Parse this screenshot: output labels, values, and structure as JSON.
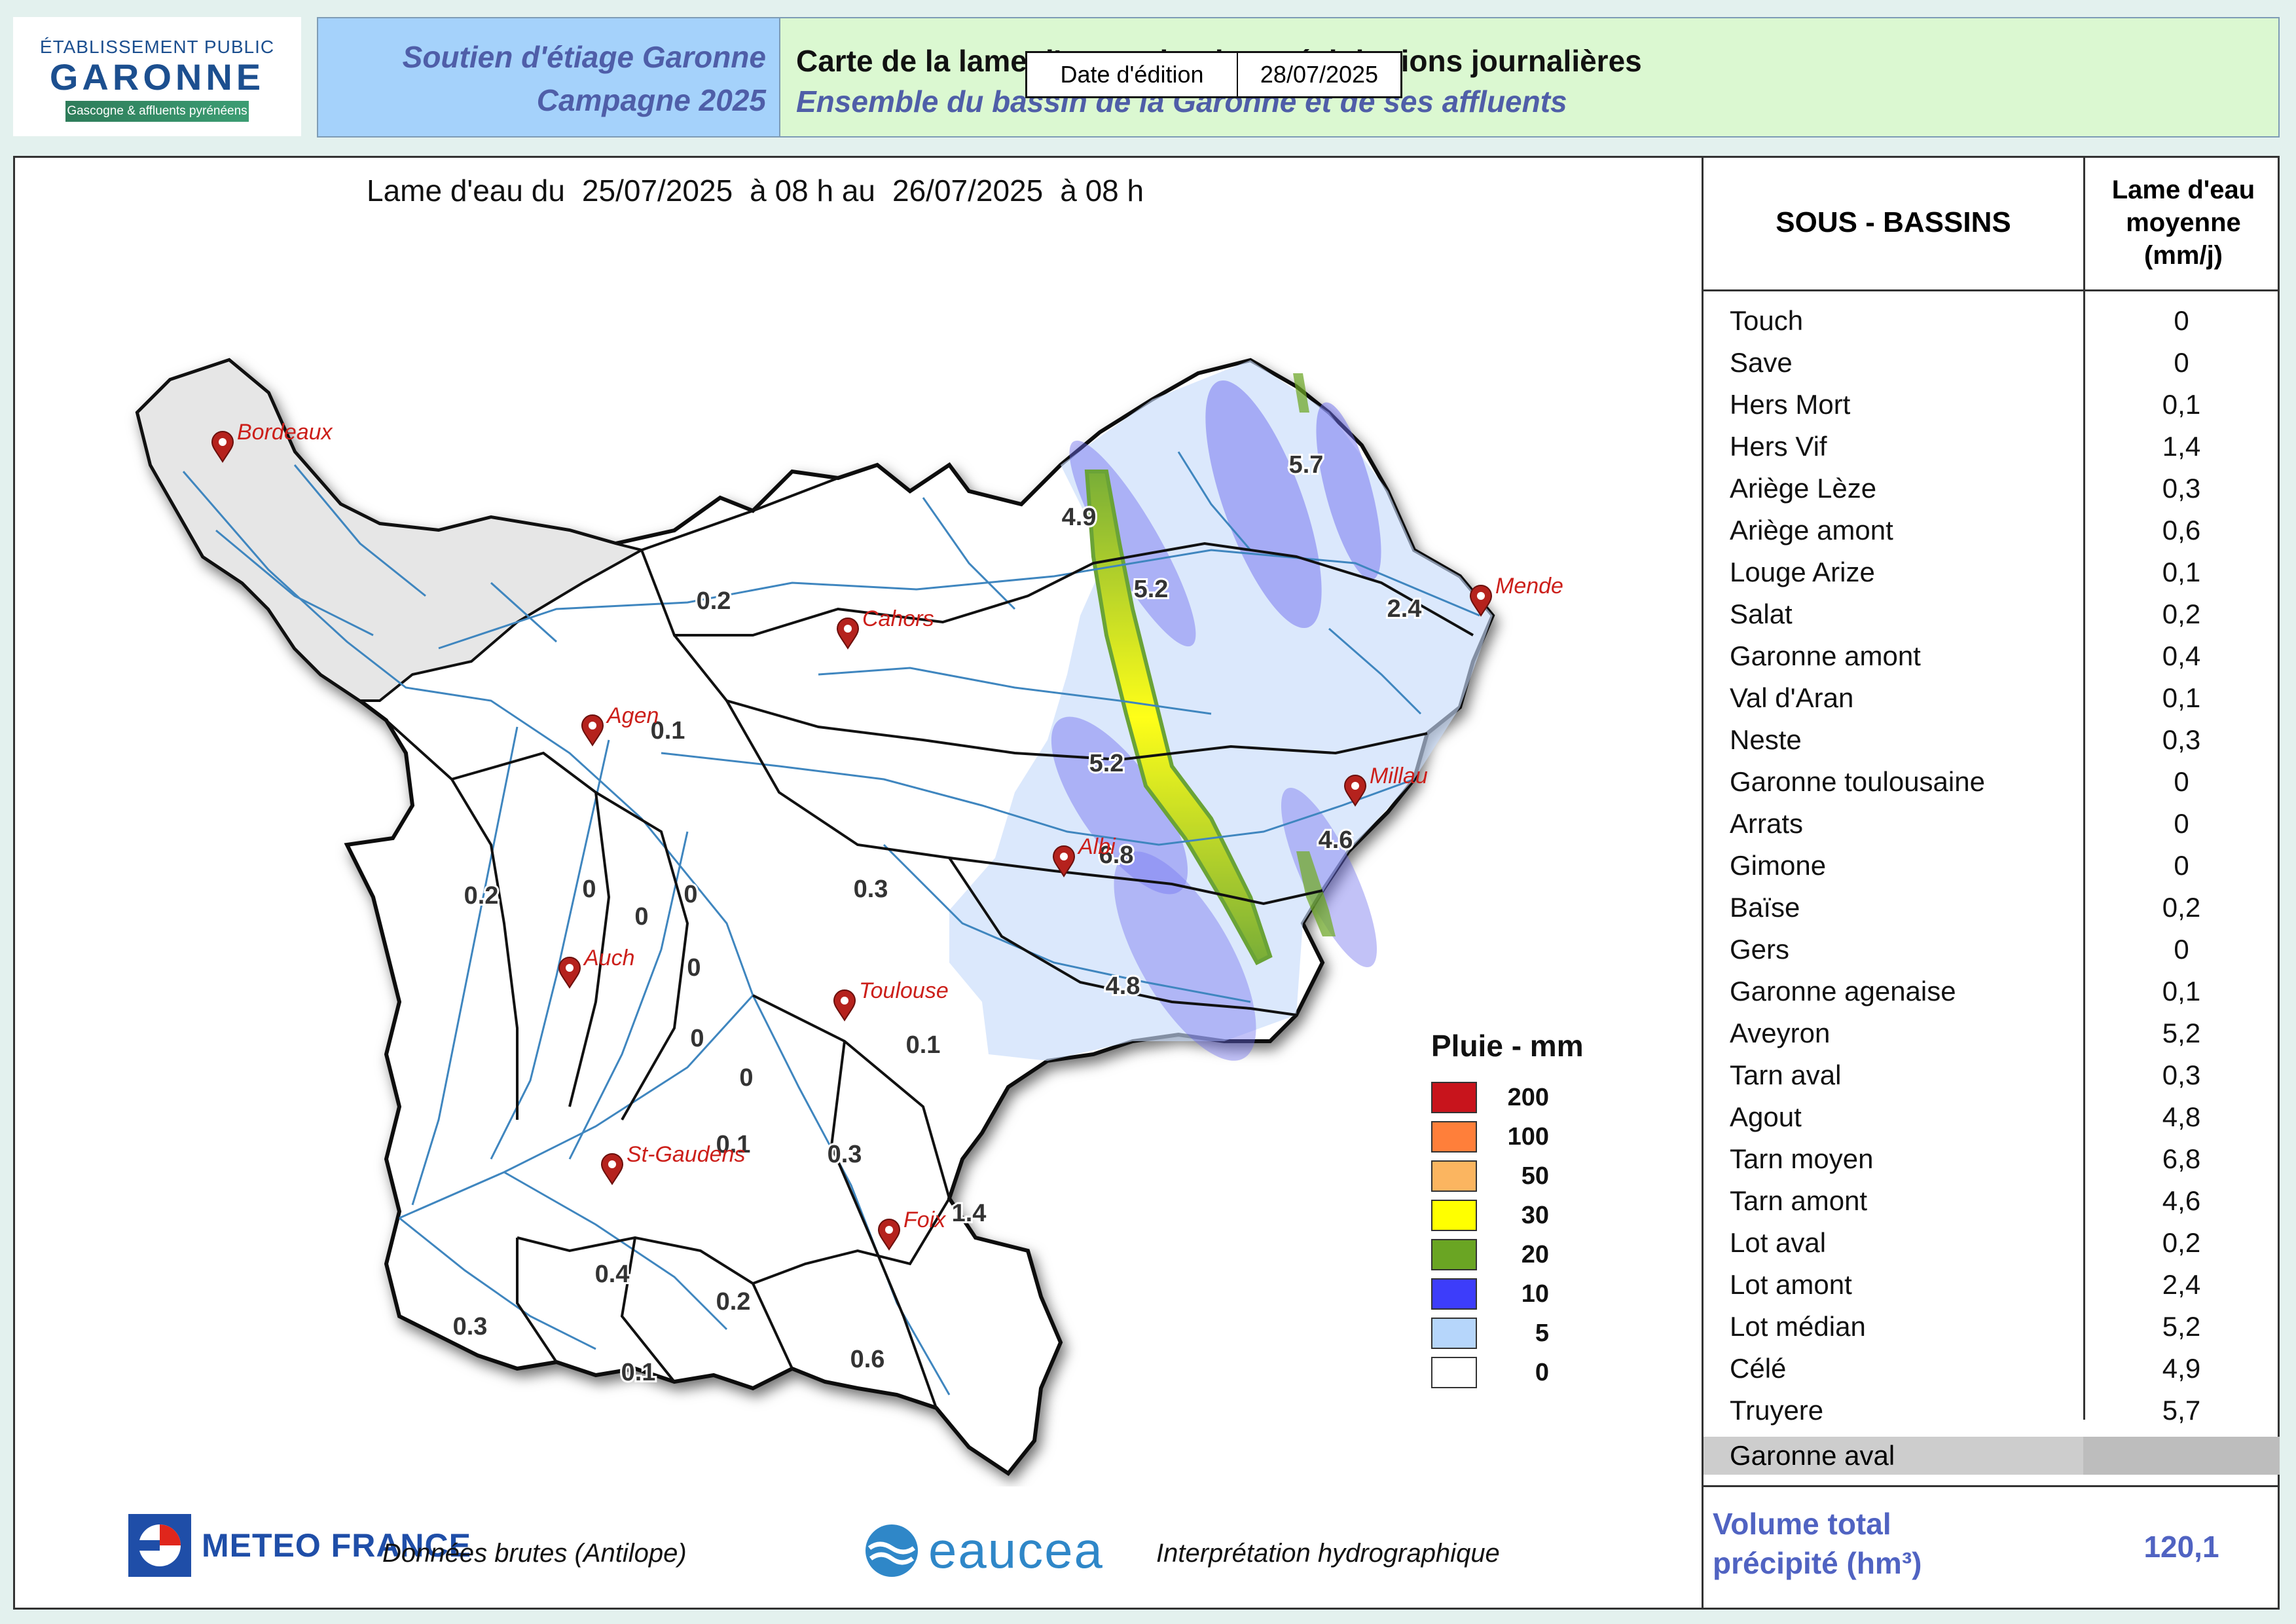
{
  "logo": {
    "line1": "ÉTABLISSEMENT PUBLIC",
    "line2": "GARONNE",
    "line3": "Gascogne & affluents pyrénéens"
  },
  "header": {
    "left_line1": "Soutien d'étiage Garonne",
    "left_line2": "Campagne 2025",
    "title": "Carte de la lame d'eau radar des précipitations journalières",
    "subtitle": "Ensemble du bassin de la Garonne et de ses affluents",
    "date_label": "Date d'édition",
    "date_value": "28/07/2025"
  },
  "map": {
    "title_prefix": "Lame d'eau du",
    "date_start": "25/07/2025",
    "hour_start": "à 08 h au",
    "date_end": "26/07/2025",
    "hour_end": "à 08 h",
    "cities": [
      {
        "name": "Bordeaux"
      },
      {
        "name": "Cahors"
      },
      {
        "name": "Mende"
      },
      {
        "name": "Agen"
      },
      {
        "name": "Millau"
      },
      {
        "name": "Albi"
      },
      {
        "name": "Auch"
      },
      {
        "name": "Toulouse"
      },
      {
        "name": "St-Gaudens"
      },
      {
        "name": "Foix"
      }
    ],
    "basin_labels": [
      "5.7",
      "4.9",
      "5.2",
      "2.4",
      "0.2",
      "0.1",
      "5.2",
      "4.6",
      "6.8",
      "0.2",
      "0",
      "0",
      "0",
      "0",
      "0.3",
      "4.8",
      "0.1",
      "0",
      "0",
      "0.1",
      "0.3",
      "1.4",
      "0.4",
      "0.2",
      "0.3",
      "0.1",
      "0.6"
    ],
    "legend": {
      "title": "Pluie - mm",
      "items": [
        {
          "value": "200",
          "color": "#c8141c"
        },
        {
          "value": "100",
          "color": "#ff7f3a"
        },
        {
          "value": "50",
          "color": "#fbb560"
        },
        {
          "value": "30",
          "color": "#ffff00"
        },
        {
          "value": "20",
          "color": "#6aa523"
        },
        {
          "value": "10",
          "color": "#3d3dfa"
        },
        {
          "value": "5",
          "color": "#b6d6fb"
        },
        {
          "value": "0",
          "color": "#ffffff"
        }
      ]
    }
  },
  "table": {
    "header_sub_basins": "SOUS - BASSINS",
    "header_value": "Lame d'eau moyenne (mm/j)",
    "rows": [
      {
        "name": "Touch",
        "value": "0"
      },
      {
        "name": "Save",
        "value": "0"
      },
      {
        "name": "Hers Mort",
        "value": "0,1"
      },
      {
        "name": "Hers Vif",
        "value": "1,4"
      },
      {
        "name": "Ariège Lèze",
        "value": "0,3"
      },
      {
        "name": "Ariège amont",
        "value": "0,6"
      },
      {
        "name": "Louge Arize",
        "value": "0,1"
      },
      {
        "name": "Salat",
        "value": "0,2"
      },
      {
        "name": "Garonne amont",
        "value": "0,4"
      },
      {
        "name": "Val d'Aran",
        "value": "0,1"
      },
      {
        "name": "Neste",
        "value": "0,3"
      },
      {
        "name": "Garonne toulousaine",
        "value": "0"
      },
      {
        "name": "Arrats",
        "value": "0"
      },
      {
        "name": "Gimone",
        "value": "0"
      },
      {
        "name": "Baïse",
        "value": "0,2"
      },
      {
        "name": "Gers",
        "value": "0"
      },
      {
        "name": "Garonne agenaise",
        "value": "0,1"
      },
      {
        "name": "Aveyron",
        "value": "5,2"
      },
      {
        "name": "Tarn aval",
        "value": "0,3"
      },
      {
        "name": "Agout",
        "value": "4,8"
      },
      {
        "name": "Tarn moyen",
        "value": "6,8"
      },
      {
        "name": "Tarn amont",
        "value": "4,6"
      },
      {
        "name": "Lot aval",
        "value": "0,2"
      },
      {
        "name": "Lot amont",
        "value": "2,4"
      },
      {
        "name": "Lot médian",
        "value": "5,2"
      },
      {
        "name": "Célé",
        "value": "4,9"
      },
      {
        "name": "Truyere",
        "value": "5,7"
      }
    ],
    "aval_name": "Garonne aval",
    "volume_label": "Volume total précipité (hm³)",
    "volume_value": "120,1"
  },
  "footer": {
    "meteo_logo": "METEO FRANCE",
    "meteo_credit": "Données brutes (Antilope)",
    "eaucea_logo": "eaucea",
    "eaucea_credit": "Interprétation hydrographique"
  }
}
